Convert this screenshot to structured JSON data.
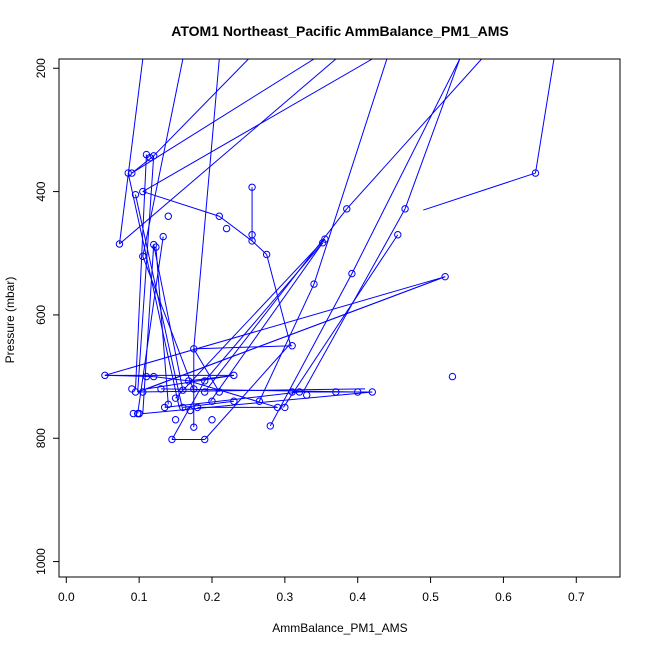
{
  "chart_data": {
    "type": "line",
    "title": "ATOM1 Northeast_Pacific AmmBalance_PM1_AMS",
    "xlabel": "AmmBalance_PM1_AMS",
    "ylabel": "Pressure (mbar)",
    "xlim": [
      -0.01,
      0.76
    ],
    "ylim": [
      1025,
      185
    ],
    "y_reversed": true,
    "xticks": [
      {
        "value": 0.0,
        "label": "0.0"
      },
      {
        "value": 0.1,
        "label": "0.1"
      },
      {
        "value": 0.2,
        "label": "0.2"
      },
      {
        "value": 0.3,
        "label": "0.3"
      },
      {
        "value": 0.4,
        "label": "0.4"
      },
      {
        "value": 0.5,
        "label": "0.5"
      },
      {
        "value": 0.6,
        "label": "0.6"
      },
      {
        "value": 0.7,
        "label": "0.7"
      }
    ],
    "yticks": [
      {
        "value": 200,
        "label": "200"
      },
      {
        "value": 400,
        "label": "400"
      },
      {
        "value": 600,
        "label": "600"
      },
      {
        "value": 800,
        "label": "800"
      },
      {
        "value": 1000,
        "label": "1000"
      }
    ],
    "grid": false,
    "color": "#0000ff",
    "points": [
      {
        "x": 0.644,
        "y": 370
      },
      {
        "x": 0.53,
        "y": 700
      },
      {
        "x": 0.42,
        "y": 725
      },
      {
        "x": 0.2,
        "y": 770
      },
      {
        "x": 0.12,
        "y": 342
      },
      {
        "x": 0.09,
        "y": 370
      },
      {
        "x": 0.11,
        "y": 340
      },
      {
        "x": 0.15,
        "y": 770
      },
      {
        "x": 0.085,
        "y": 370
      },
      {
        "x": 0.105,
        "y": 725
      },
      {
        "x": 0.115,
        "y": 345
      },
      {
        "x": 0.095,
        "y": 725
      },
      {
        "x": 0.09,
        "y": 720
      },
      {
        "x": 0.1,
        "y": 760
      },
      {
        "x": 0.105,
        "y": 400
      },
      {
        "x": 0.098,
        "y": 760
      },
      {
        "x": 0.095,
        "y": 405
      },
      {
        "x": 0.14,
        "y": 440
      },
      {
        "x": 0.21,
        "y": 440
      },
      {
        "x": 0.255,
        "y": 470
      },
      {
        "x": 0.073,
        "y": 485
      },
      {
        "x": 0.1,
        "y": 760
      },
      {
        "x": 0.123,
        "y": 490
      },
      {
        "x": 0.14,
        "y": 745
      },
      {
        "x": 0.133,
        "y": 473
      },
      {
        "x": 0.092,
        "y": 760
      },
      {
        "x": 0.12,
        "y": 486
      },
      {
        "x": 0.16,
        "y": 722
      },
      {
        "x": 0.105,
        "y": 505
      },
      {
        "x": 0.175,
        "y": 720
      },
      {
        "x": 0.255,
        "y": 480
      },
      {
        "x": 0.255,
        "y": 393
      },
      {
        "x": 0.22,
        "y": 460
      },
      {
        "x": 0.275,
        "y": 502
      },
      {
        "x": 0.31,
        "y": 650
      },
      {
        "x": 0.17,
        "y": 755
      },
      {
        "x": 0.175,
        "y": 655
      },
      {
        "x": 0.21,
        "y": 725
      },
      {
        "x": 0.352,
        "y": 483
      },
      {
        "x": 0.2,
        "y": 740
      },
      {
        "x": 0.385,
        "y": 428
      },
      {
        "x": 0.19,
        "y": 725
      },
      {
        "x": 0.465,
        "y": 428
      },
      {
        "x": 0.33,
        "y": 730
      },
      {
        "x": 0.455,
        "y": 470
      },
      {
        "x": 0.3,
        "y": 750
      },
      {
        "x": 0.392,
        "y": 533
      },
      {
        "x": 0.28,
        "y": 780
      },
      {
        "x": 0.355,
        "y": 477
      },
      {
        "x": 0.15,
        "y": 735
      },
      {
        "x": 0.34,
        "y": 550
      },
      {
        "x": 0.265,
        "y": 740
      },
      {
        "x": 0.52,
        "y": 538
      },
      {
        "x": 0.13,
        "y": 720
      },
      {
        "x": 0.4,
        "y": 725
      },
      {
        "x": 0.12,
        "y": 700
      },
      {
        "x": 0.053,
        "y": 698
      },
      {
        "x": 0.23,
        "y": 698
      },
      {
        "x": 0.168,
        "y": 707
      },
      {
        "x": 0.11,
        "y": 700
      },
      {
        "x": 0.19,
        "y": 707
      },
      {
        "x": 0.37,
        "y": 725
      },
      {
        "x": 0.31,
        "y": 725
      },
      {
        "x": 0.135,
        "y": 750
      },
      {
        "x": 0.16,
        "y": 750
      },
      {
        "x": 0.23,
        "y": 740
      },
      {
        "x": 0.18,
        "y": 750
      },
      {
        "x": 0.29,
        "y": 750
      },
      {
        "x": 0.145,
        "y": 802
      },
      {
        "x": 0.19,
        "y": 802
      },
      {
        "x": 0.175,
        "y": 782
      },
      {
        "x": 0.32,
        "y": 725
      }
    ],
    "segments": [
      [
        0.644,
        370,
        0.49,
        430
      ],
      [
        0.644,
        370,
        0.67,
        180
      ],
      [
        0.52,
        538,
        0.098,
        725
      ],
      [
        0.52,
        538,
        0.053,
        698
      ],
      [
        0.52,
        538,
        0.11,
        720
      ],
      [
        0.12,
        342,
        0.09,
        370
      ],
      [
        0.12,
        342,
        0.25,
        185
      ],
      [
        0.09,
        370,
        0.34,
        185
      ],
      [
        0.085,
        370,
        0.155,
        750
      ],
      [
        0.11,
        340,
        0.095,
        720
      ],
      [
        0.095,
        405,
        0.16,
        755
      ],
      [
        0.105,
        400,
        0.21,
        440
      ],
      [
        0.105,
        400,
        0.42,
        185
      ],
      [
        0.073,
        485,
        0.105,
        185
      ],
      [
        0.073,
        485,
        0.37,
        185
      ],
      [
        0.21,
        440,
        0.255,
        480
      ],
      [
        0.255,
        480,
        0.255,
        393
      ],
      [
        0.255,
        480,
        0.275,
        502
      ],
      [
        0.275,
        502,
        0.308,
        650
      ],
      [
        0.133,
        473,
        0.098,
        760
      ],
      [
        0.123,
        490,
        0.14,
        745
      ],
      [
        0.12,
        486,
        0.16,
        722
      ],
      [
        0.105,
        505,
        0.175,
        722
      ],
      [
        0.105,
        505,
        0.16,
        185
      ],
      [
        0.175,
        655,
        0.21,
        185
      ],
      [
        0.175,
        655,
        0.31,
        650
      ],
      [
        0.175,
        655,
        0.21,
        725
      ],
      [
        0.352,
        483,
        0.198,
        740
      ],
      [
        0.352,
        483,
        0.19,
        707
      ],
      [
        0.385,
        428,
        0.19,
        725
      ],
      [
        0.385,
        428,
        0.57,
        185
      ],
      [
        0.465,
        428,
        0.325,
        725
      ],
      [
        0.465,
        428,
        0.54,
        185
      ],
      [
        0.455,
        470,
        0.298,
        750
      ],
      [
        0.392,
        533,
        0.28,
        780
      ],
      [
        0.392,
        533,
        0.54,
        185
      ],
      [
        0.355,
        477,
        0.15,
        735
      ],
      [
        0.34,
        550,
        0.265,
        740
      ],
      [
        0.34,
        550,
        0.44,
        185
      ],
      [
        0.053,
        698,
        0.23,
        698
      ],
      [
        0.053,
        698,
        0.12,
        700
      ],
      [
        0.168,
        707,
        0.23,
        698
      ],
      [
        0.168,
        707,
        0.29,
        750
      ],
      [
        0.19,
        707,
        0.145,
        802
      ],
      [
        0.37,
        725,
        0.31,
        725
      ],
      [
        0.37,
        725,
        0.42,
        725
      ],
      [
        0.42,
        725,
        0.105,
        760
      ],
      [
        0.32,
        725,
        0.135,
        750
      ],
      [
        0.23,
        740,
        0.16,
        750
      ],
      [
        0.18,
        750,
        0.29,
        750
      ],
      [
        0.145,
        802,
        0.19,
        802
      ],
      [
        0.175,
        782,
        0.175,
        655
      ],
      [
        0.19,
        802,
        0.305,
        650
      ],
      [
        0.13,
        720,
        0.4,
        725
      ],
      [
        0.11,
        720,
        0.23,
        698
      ],
      [
        0.12,
        700,
        0.168,
        707
      ],
      [
        0.105,
        760,
        0.12,
        486
      ],
      [
        0.098,
        725,
        0.41,
        720
      ],
      [
        0.098,
        725,
        0.12,
        342
      ]
    ]
  }
}
